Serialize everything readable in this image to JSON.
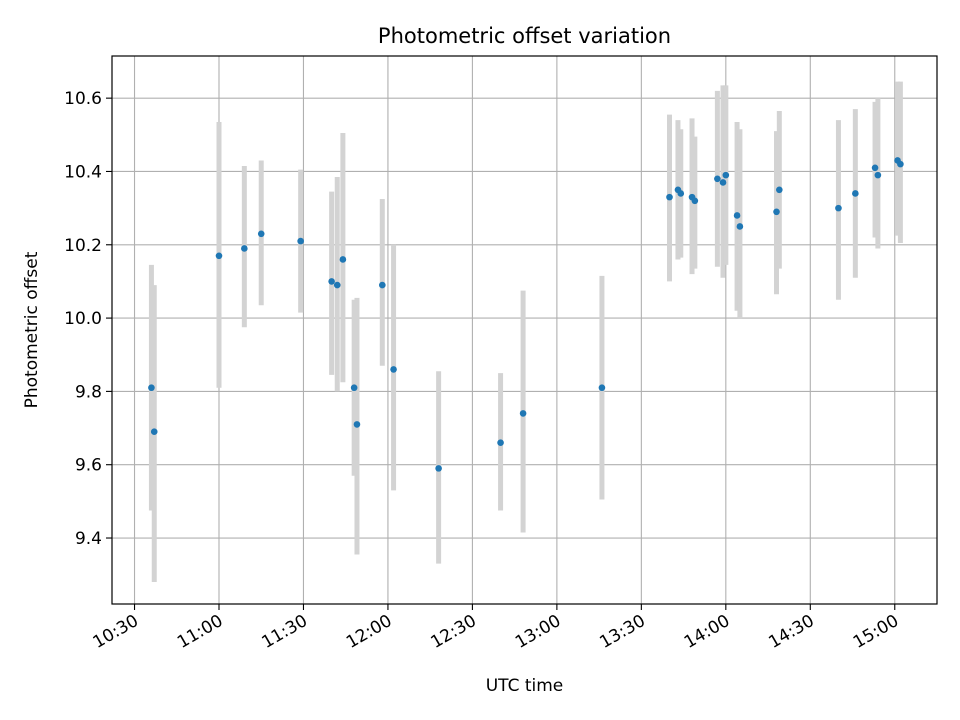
{
  "chart_data": {
    "type": "scatter",
    "title": "Photometric offset variation",
    "xlabel": "UTC time",
    "ylabel": "Photometric offset",
    "x_ticks": [
      "10:30",
      "11:00",
      "11:30",
      "12:00",
      "12:30",
      "13:00",
      "13:30",
      "14:00",
      "14:30",
      "15:00"
    ],
    "y_ticks": [
      "9.4",
      "9.6",
      "9.8",
      "10.0",
      "10.2",
      "10.4",
      "10.6"
    ],
    "xlim": [
      "10:22",
      "15:15"
    ],
    "ylim": [
      9.22,
      10.715
    ],
    "grid": true,
    "colors": {
      "marker": "#1f77b4",
      "errorbar": "#d3d3d3",
      "grid": "#b0b0b0"
    },
    "series": [
      {
        "points": [
          {
            "x": "10:36",
            "y": 9.81,
            "lo": 9.475,
            "hi": 10.145
          },
          {
            "x": "10:37",
            "y": 9.69,
            "lo": 9.28,
            "hi": 10.09
          },
          {
            "x": "11:00",
            "y": 10.17,
            "lo": 9.81,
            "hi": 10.535
          },
          {
            "x": "11:09",
            "y": 10.19,
            "lo": 9.975,
            "hi": 10.415
          },
          {
            "x": "11:15",
            "y": 10.23,
            "lo": 10.035,
            "hi": 10.43
          },
          {
            "x": "11:29",
            "y": 10.21,
            "lo": 10.015,
            "hi": 10.405
          },
          {
            "x": "11:40",
            "y": 10.1,
            "lo": 9.845,
            "hi": 10.345
          },
          {
            "x": "11:42",
            "y": 10.09,
            "lo": 9.8,
            "hi": 10.385
          },
          {
            "x": "11:44",
            "y": 10.16,
            "lo": 9.825,
            "hi": 10.505
          },
          {
            "x": "11:48",
            "y": 9.81,
            "lo": 9.57,
            "hi": 10.05
          },
          {
            "x": "11:49",
            "y": 9.71,
            "lo": 9.355,
            "hi": 10.055
          },
          {
            "x": "11:58",
            "y": 10.09,
            "lo": 9.87,
            "hi": 10.325
          },
          {
            "x": "12:02",
            "y": 9.86,
            "lo": 9.53,
            "hi": 10.2
          },
          {
            "x": "12:18",
            "y": 9.59,
            "lo": 9.33,
            "hi": 9.855
          },
          {
            "x": "12:40",
            "y": 9.66,
            "lo": 9.475,
            "hi": 9.85
          },
          {
            "x": "12:48",
            "y": 9.74,
            "lo": 9.415,
            "hi": 10.075
          },
          {
            "x": "13:16",
            "y": 9.81,
            "lo": 9.505,
            "hi": 10.115
          },
          {
            "x": "13:40",
            "y": 10.33,
            "lo": 10.1,
            "hi": 10.555
          },
          {
            "x": "13:43",
            "y": 10.35,
            "lo": 10.16,
            "hi": 10.54
          },
          {
            "x": "13:44",
            "y": 10.34,
            "lo": 10.165,
            "hi": 10.515
          },
          {
            "x": "13:48",
            "y": 10.33,
            "lo": 10.12,
            "hi": 10.545
          },
          {
            "x": "13:49",
            "y": 10.32,
            "lo": 10.135,
            "hi": 10.495
          },
          {
            "x": "13:57",
            "y": 10.38,
            "lo": 10.14,
            "hi": 10.62
          },
          {
            "x": "13:59",
            "y": 10.37,
            "lo": 10.11,
            "hi": 10.635
          },
          {
            "x": "14:00",
            "y": 10.39,
            "lo": 10.145,
            "hi": 10.635
          },
          {
            "x": "14:04",
            "y": 10.28,
            "lo": 10.02,
            "hi": 10.535
          },
          {
            "x": "14:05",
            "y": 10.25,
            "lo": 10.0,
            "hi": 10.515
          },
          {
            "x": "14:18",
            "y": 10.29,
            "lo": 10.065,
            "hi": 10.51
          },
          {
            "x": "14:19",
            "y": 10.35,
            "lo": 10.135,
            "hi": 10.565
          },
          {
            "x": "14:40",
            "y": 10.3,
            "lo": 10.05,
            "hi": 10.54
          },
          {
            "x": "14:46",
            "y": 10.34,
            "lo": 10.11,
            "hi": 10.57
          },
          {
            "x": "14:53",
            "y": 10.41,
            "lo": 10.22,
            "hi": 10.59
          },
          {
            "x": "14:54",
            "y": 10.39,
            "lo": 10.19,
            "hi": 10.6
          },
          {
            "x": "15:01",
            "y": 10.43,
            "lo": 10.225,
            "hi": 10.645
          },
          {
            "x": "15:02",
            "y": 10.42,
            "lo": 10.205,
            "hi": 10.645
          }
        ]
      }
    ]
  }
}
